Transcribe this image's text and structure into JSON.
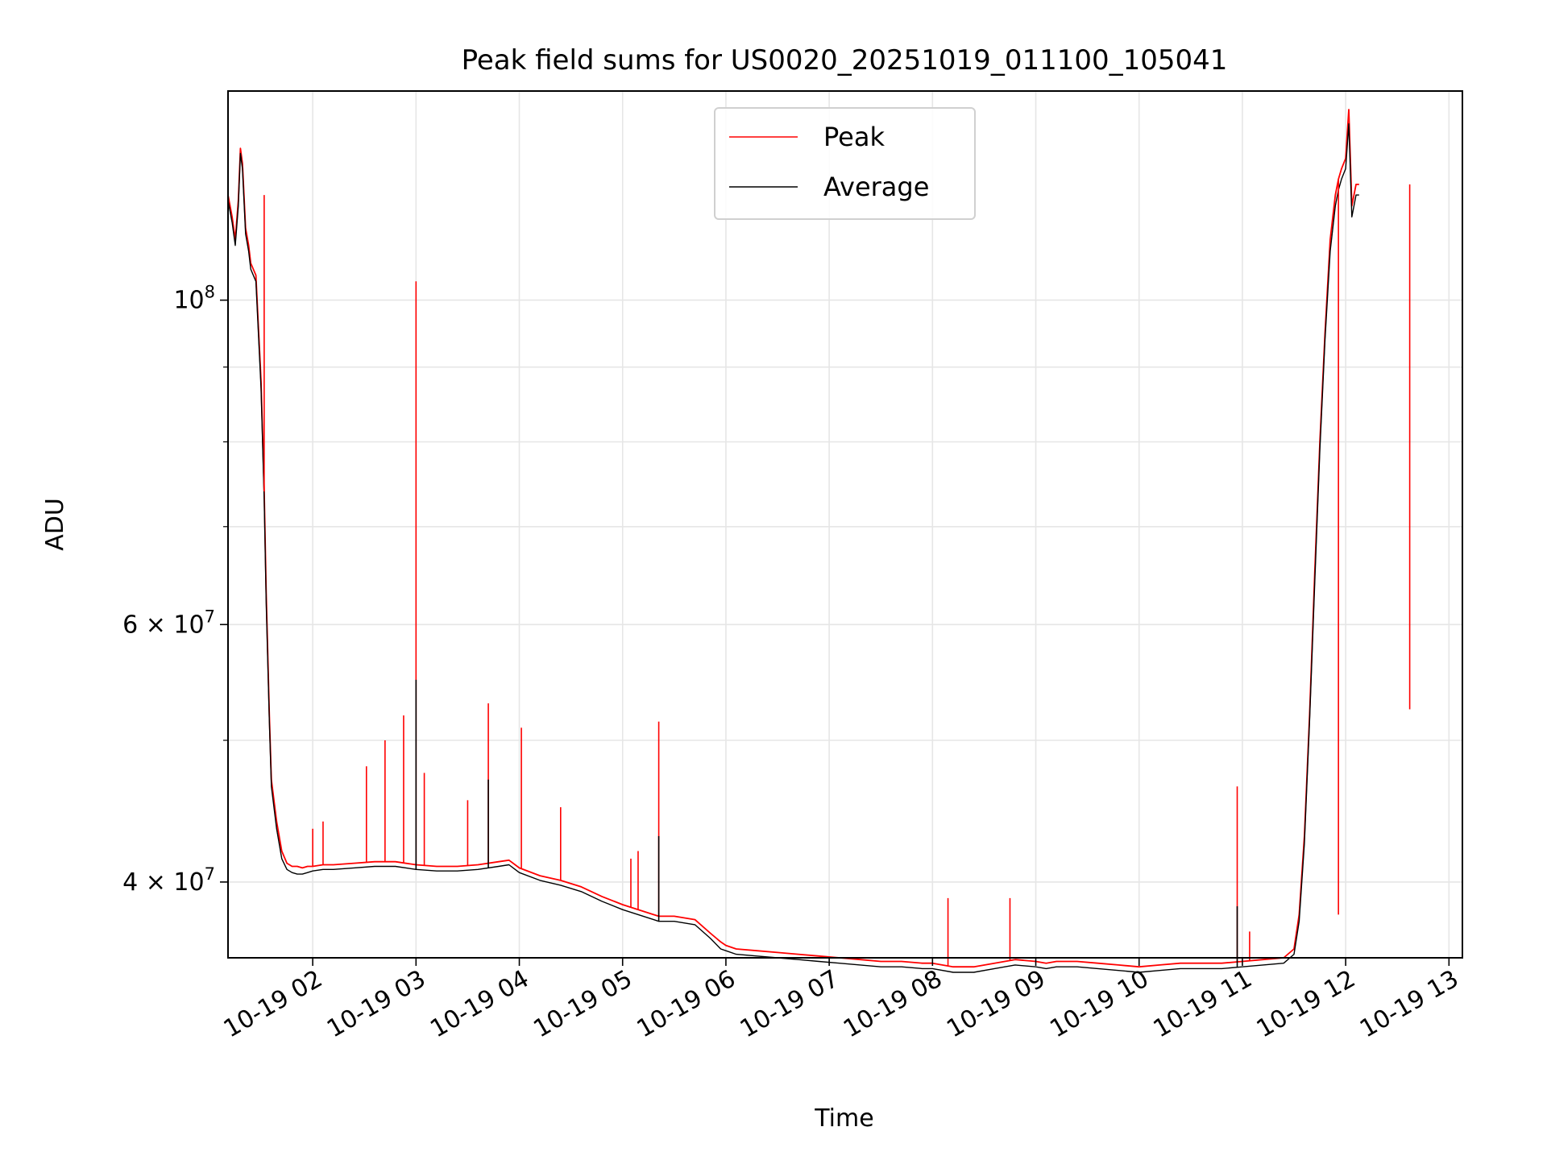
{
  "chart_data": {
    "type": "line",
    "title": "Peak field sums for US0020_20251019_011100_105041",
    "xlabel": "Time",
    "ylabel": "ADU",
    "yscale": "log",
    "xlim": [
      1.18,
      13.13
    ],
    "ylim": [
      35500000,
      139000000
    ],
    "grid": true,
    "legend_position": "top-center",
    "x_ticks": [
      {
        "value": 2,
        "label": "10-19 02"
      },
      {
        "value": 3,
        "label": "10-19 03"
      },
      {
        "value": 4,
        "label": "10-19 04"
      },
      {
        "value": 5,
        "label": "10-19 05"
      },
      {
        "value": 6,
        "label": "10-19 06"
      },
      {
        "value": 7,
        "label": "10-19 07"
      },
      {
        "value": 8,
        "label": "10-19 08"
      },
      {
        "value": 9,
        "label": "10-19 09"
      },
      {
        "value": 10,
        "label": "10-19 10"
      },
      {
        "value": 11,
        "label": "10-19 11"
      },
      {
        "value": 12,
        "label": "10-19 12"
      },
      {
        "value": 13,
        "label": "10-19 13"
      }
    ],
    "y_ticks": [
      {
        "value": 40000000,
        "mantissa": "4",
        "times": "×",
        "base": "10",
        "exp": "7"
      },
      {
        "value": 60000000,
        "mantissa": "6",
        "times": "×",
        "base": "10",
        "exp": "7"
      },
      {
        "value": 100000000,
        "mantissa": "",
        "times": "",
        "base": "10",
        "exp": "8"
      }
    ],
    "y_minor_ticks": [
      50000000,
      70000000,
      80000000,
      90000000
    ],
    "series": [
      {
        "name": "Peak",
        "color": "#ff0000",
        "x": [
          1.18,
          1.22,
          1.25,
          1.28,
          1.3,
          1.32,
          1.35,
          1.38,
          1.4,
          1.45,
          1.5,
          1.53,
          1.55,
          1.58,
          1.6,
          1.65,
          1.7,
          1.75,
          1.8,
          1.85,
          1.9,
          1.95,
          2.0,
          2.1,
          2.2,
          2.4,
          2.6,
          2.8,
          3.0,
          3.2,
          3.4,
          3.6,
          3.8,
          3.9,
          4.0,
          4.2,
          4.4,
          4.6,
          4.8,
          5.0,
          5.1,
          5.3,
          5.35,
          5.5,
          5.7,
          5.85,
          5.95,
          6.0,
          6.1,
          6.3,
          6.5,
          6.7,
          6.9,
          7.1,
          7.3,
          7.5,
          7.7,
          7.9,
          8.0,
          8.2,
          8.4,
          8.6,
          8.8,
          9.0,
          9.1,
          9.2,
          9.4,
          9.6,
          9.8,
          10.0,
          10.2,
          10.4,
          10.6,
          10.8,
          11.0,
          11.2,
          11.4,
          11.5,
          11.55,
          11.6,
          11.65,
          11.7,
          11.75,
          11.8,
          11.85,
          11.9,
          11.93,
          11.96,
          12.0,
          12.03,
          12.06,
          12.1,
          12.13
        ],
        "y": [
          118000000,
          114000000,
          110000000,
          117000000,
          127000000,
          124000000,
          112000000,
          109000000,
          106000000,
          104000000,
          88000000,
          74000000,
          63000000,
          52000000,
          47000000,
          44000000,
          42000000,
          41200000,
          41000000,
          41000000,
          40900000,
          41000000,
          41000000,
          41100000,
          41100000,
          41200000,
          41300000,
          41300000,
          41100000,
          41000000,
          41000000,
          41100000,
          41300000,
          41400000,
          40900000,
          40400000,
          40100000,
          39700000,
          39100000,
          38600000,
          38400000,
          38000000,
          37900000,
          37900000,
          37700000,
          36900000,
          36400000,
          36200000,
          36000000,
          35900000,
          35800000,
          35700000,
          35600000,
          35500000,
          35400000,
          35300000,
          35300000,
          35200000,
          35200000,
          35000000,
          35000000,
          35200000,
          35400000,
          35300000,
          35200000,
          35300000,
          35300000,
          35200000,
          35100000,
          35000000,
          35100000,
          35200000,
          35200000,
          35200000,
          35300000,
          35400000,
          35500000,
          36000000,
          38000000,
          43000000,
          52000000,
          65000000,
          80000000,
          95000000,
          110000000,
          118000000,
          121000000,
          123000000,
          125000000,
          135000000,
          116000000,
          120000000,
          120000000
        ]
      },
      {
        "name": "Average",
        "color": "#000000",
        "x": [
          1.18,
          1.22,
          1.25,
          1.28,
          1.3,
          1.32,
          1.35,
          1.38,
          1.4,
          1.45,
          1.5,
          1.53,
          1.55,
          1.58,
          1.6,
          1.65,
          1.7,
          1.75,
          1.8,
          1.85,
          1.9,
          1.95,
          2.0,
          2.1,
          2.2,
          2.4,
          2.6,
          2.8,
          3.0,
          3.2,
          3.4,
          3.6,
          3.8,
          3.9,
          4.0,
          4.2,
          4.4,
          4.6,
          4.8,
          5.0,
          5.1,
          5.3,
          5.35,
          5.5,
          5.7,
          5.85,
          5.95,
          6.0,
          6.1,
          6.3,
          6.5,
          6.7,
          6.9,
          7.1,
          7.3,
          7.5,
          7.7,
          7.9,
          8.0,
          8.2,
          8.4,
          8.6,
          8.8,
          9.0,
          9.1,
          9.2,
          9.4,
          9.6,
          9.8,
          10.0,
          10.2,
          10.4,
          10.6,
          10.8,
          11.0,
          11.2,
          11.4,
          11.5,
          11.55,
          11.6,
          11.65,
          11.7,
          11.75,
          11.8,
          11.85,
          11.9,
          11.93,
          11.96,
          12.0,
          12.03,
          12.06,
          12.1,
          12.13
        ],
        "y": [
          117000000,
          113000000,
          109000000,
          116000000,
          126000000,
          123000000,
          111000000,
          108000000,
          105000000,
          103000000,
          87000000,
          73000000,
          62000000,
          51500000,
          46500000,
          43500000,
          41500000,
          40800000,
          40600000,
          40500000,
          40500000,
          40600000,
          40700000,
          40800000,
          40800000,
          40900000,
          41000000,
          41000000,
          40800000,
          40700000,
          40700000,
          40800000,
          41000000,
          41100000,
          40600000,
          40100000,
          39800000,
          39400000,
          38800000,
          38300000,
          38100000,
          37700000,
          37600000,
          37600000,
          37400000,
          36600000,
          36000000,
          35900000,
          35700000,
          35600000,
          35500000,
          35400000,
          35300000,
          35200000,
          35100000,
          35000000,
          35000000,
          34900000,
          34900000,
          34700000,
          34700000,
          34900000,
          35100000,
          35000000,
          34900000,
          35000000,
          35000000,
          34900000,
          34800000,
          34700000,
          34800000,
          34900000,
          34900000,
          34900000,
          35000000,
          35100000,
          35200000,
          35700000,
          37600000,
          42500000,
          51500000,
          64000000,
          79000000,
          94000000,
          108000000,
          116000000,
          119000000,
          121000000,
          123000000,
          132000000,
          114000000,
          118000000,
          118000000
        ]
      }
    ],
    "spikes": [
      {
        "series": "Peak",
        "x": 1.53,
        "y": 118000000
      },
      {
        "series": "Peak",
        "x": 2.0,
        "y": 43500000
      },
      {
        "series": "Peak",
        "x": 2.1,
        "y": 44000000
      },
      {
        "series": "Peak",
        "x": 2.52,
        "y": 48000000
      },
      {
        "series": "Peak",
        "x": 2.7,
        "y": 50000000
      },
      {
        "series": "Peak",
        "x": 2.88,
        "y": 52000000
      },
      {
        "series": "Peak",
        "x": 3.0,
        "y": 103000000
      },
      {
        "series": "Average",
        "x": 3.0,
        "y": 55000000
      },
      {
        "series": "Peak",
        "x": 3.08,
        "y": 47500000
      },
      {
        "series": "Peak",
        "x": 3.5,
        "y": 45500000
      },
      {
        "series": "Peak",
        "x": 3.7,
        "y": 53000000
      },
      {
        "series": "Average",
        "x": 3.7,
        "y": 47000000
      },
      {
        "series": "Peak",
        "x": 4.02,
        "y": 51000000
      },
      {
        "series": "Peak",
        "x": 4.4,
        "y": 45000000
      },
      {
        "series": "Peak",
        "x": 5.08,
        "y": 41500000
      },
      {
        "series": "Peak",
        "x": 5.15,
        "y": 42000000
      },
      {
        "series": "Peak",
        "x": 5.35,
        "y": 51500000
      },
      {
        "series": "Average",
        "x": 5.35,
        "y": 43000000
      },
      {
        "series": "Peak",
        "x": 8.15,
        "y": 39000000
      },
      {
        "series": "Peak",
        "x": 8.75,
        "y": 39000000
      },
      {
        "series": "Peak",
        "x": 10.95,
        "y": 46500000
      },
      {
        "series": "Average",
        "x": 10.95,
        "y": 38500000
      },
      {
        "series": "Peak",
        "x": 11.07,
        "y": 37000000
      },
      {
        "series": "Peak",
        "x": 11.93,
        "y": 38000000
      },
      {
        "series": "Peak",
        "x": 12.62,
        "y": 52500000
      }
    ]
  }
}
